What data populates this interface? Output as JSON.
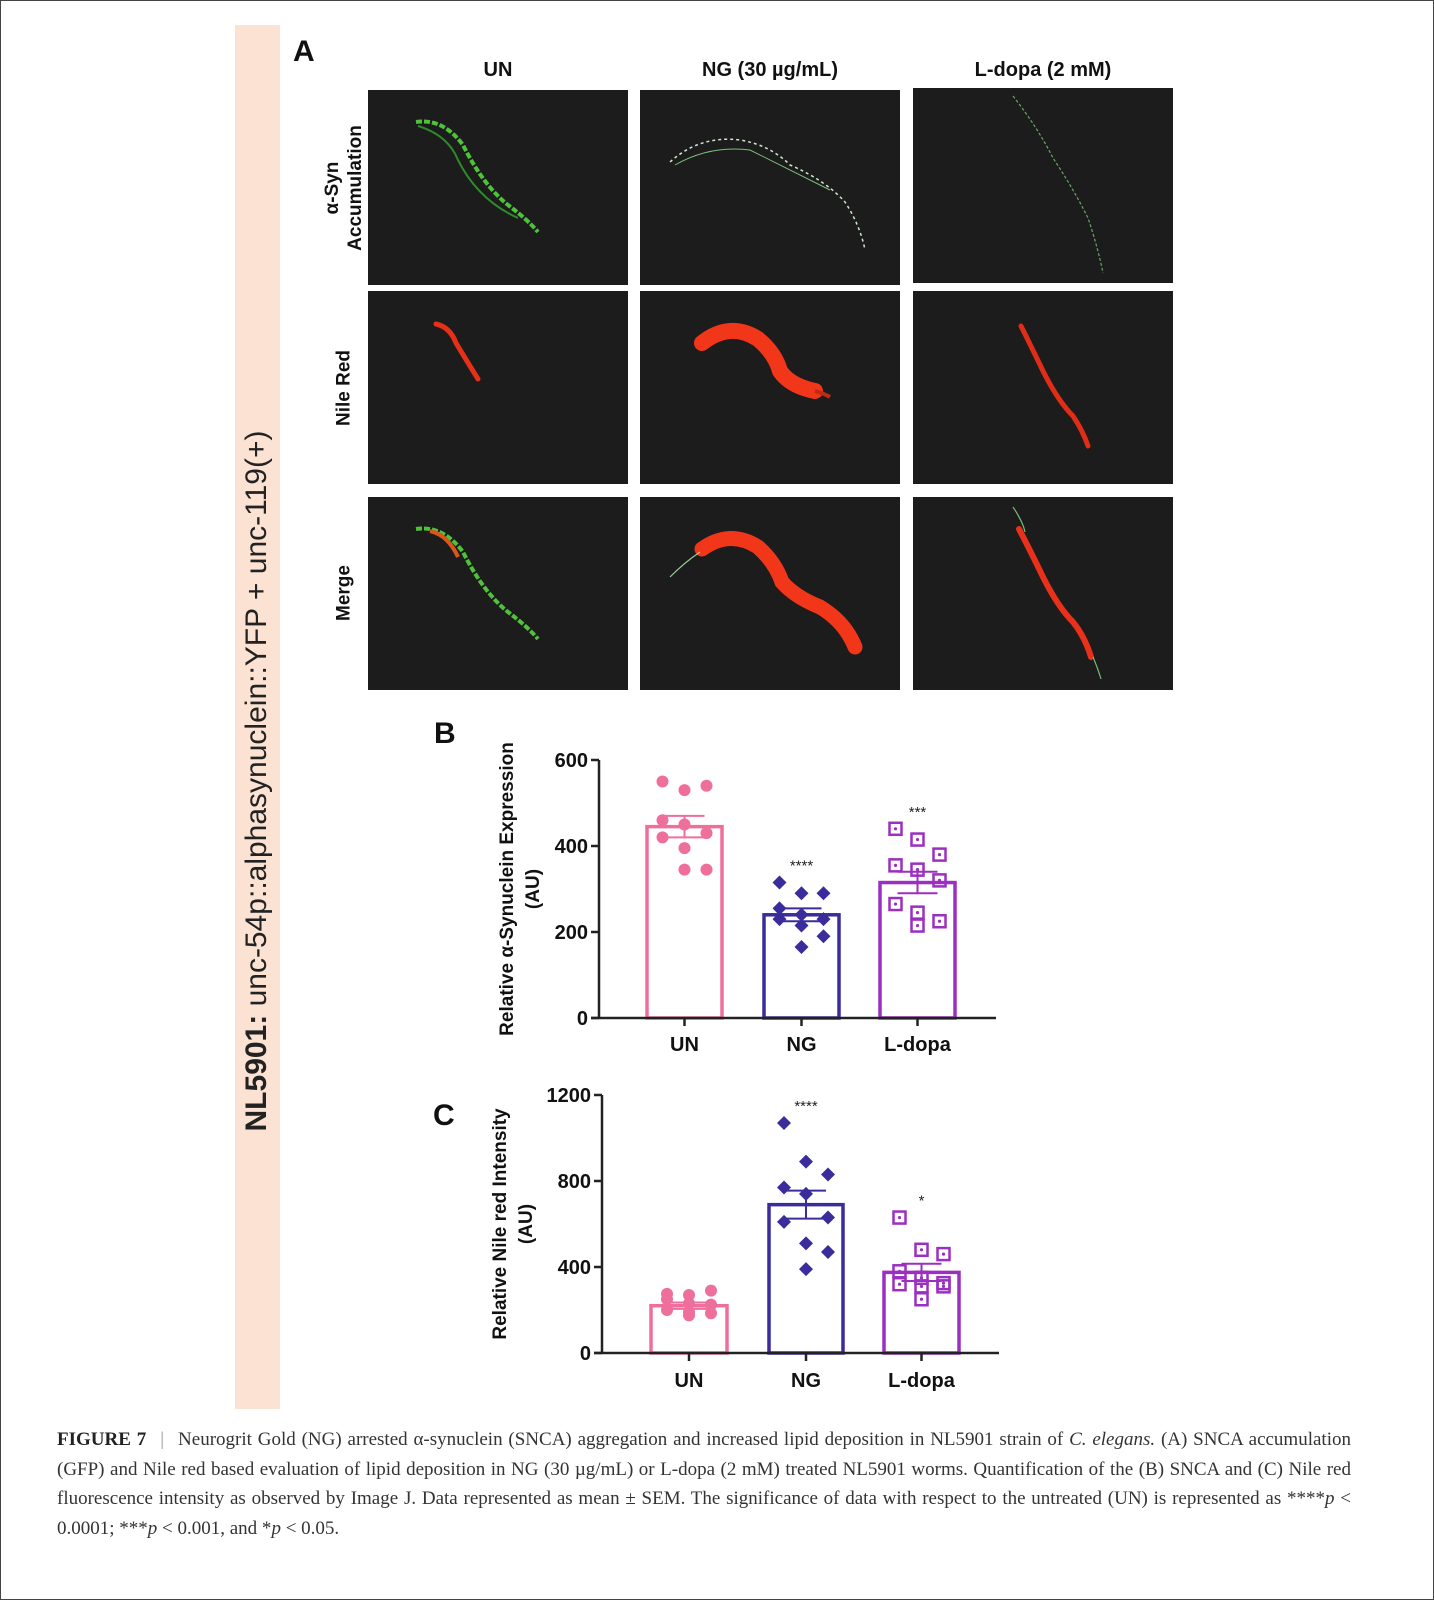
{
  "strain_label": {
    "bold": "NL5901:",
    "rest": " unc-54p::alphasynuclein::YFP + unc-119(+)"
  },
  "panel_a": {
    "letter": "A",
    "columns": [
      "UN",
      "NG (30 µg/mL)",
      "L-dopa (2 mM)"
    ],
    "rows": [
      {
        "line1": "α-Syn",
        "line2": "Accumulation"
      },
      {
        "line1": "Nile Red",
        "line2": ""
      },
      {
        "line1": "Merge",
        "line2": ""
      }
    ]
  },
  "chart_data": [
    {
      "panel_letter": "B",
      "type": "bar",
      "ylabel_line1": "Relative α-Synuclein Expression",
      "ylabel_line2": "(AU)",
      "xlabel": "",
      "categories": [
        "UN",
        "NG",
        "L-dopa"
      ],
      "ylim": [
        0,
        600
      ],
      "yticks": [
        "0",
        "200",
        "400",
        "600"
      ],
      "means": [
        445,
        240,
        315
      ],
      "sem": [
        25,
        15,
        25
      ],
      "significance": [
        "",
        "****",
        "***"
      ],
      "points": [
        [
          550,
          530,
          540,
          460,
          450,
          430,
          420,
          395,
          345,
          345
        ],
        [
          315,
          290,
          290,
          255,
          240,
          230,
          230,
          215,
          190,
          165
        ],
        [
          440,
          415,
          380,
          355,
          345,
          320,
          265,
          245,
          225,
          215
        ]
      ],
      "markers": [
        "circle",
        "diamond",
        "square-dot"
      ],
      "colors": [
        "#ef6f9c",
        "#3b2c9c",
        "#9a2fc0"
      ],
      "grid": false
    },
    {
      "panel_letter": "C",
      "type": "bar",
      "ylabel_line1": "Relative Nile red Intensity",
      "ylabel_line2": "(AU)",
      "xlabel": "",
      "categories": [
        "UN",
        "NG",
        "L-dopa"
      ],
      "ylim": [
        0,
        1200
      ],
      "yticks": [
        "0",
        "400",
        "800",
        "1200"
      ],
      "means": [
        220,
        690,
        375
      ],
      "sem": [
        15,
        65,
        40
      ],
      "significance": [
        "",
        "****",
        "*"
      ],
      "points": [
        [
          275,
          270,
          290,
          250,
          230,
          225,
          200,
          190,
          185,
          175
        ],
        [
          1070,
          890,
          830,
          770,
          740,
          630,
          610,
          510,
          470,
          390
        ],
        [
          630,
          480,
          460,
          380,
          350,
          325,
          320,
          310,
          310,
          250
        ]
      ],
      "markers": [
        "circle",
        "diamond",
        "square-dot"
      ],
      "colors": [
        "#ef6f9c",
        "#3b2c9c",
        "#9a2fc0"
      ],
      "grid": false
    }
  ],
  "caption": {
    "figure_label": "FIGURE 7",
    "separator": "|",
    "t1": "Neurogrit Gold (NG) arrested α-synuclein (SNCA) aggregation and increased lipid deposition in NL5901 strain of ",
    "i1": "C. elegans.",
    "t2": " (A) SNCA accumulation (GFP) and Nile red based evaluation of lipid deposition in NG (30 µg/mL) or L-dopa (2 mM) treated NL5901 worms. Quantification of the (B) SNCA and (C) Nile red fluorescence intensity as observed by Image J. Data represented as mean ± SEM. The significance of data with respect to the untreated (UN) is represented as ****",
    "p1": "p",
    "t3": " < 0.0001; ***",
    "p2": "p",
    "t4": " < 0.001, and *",
    "p3": "p",
    "t5": " < 0.05."
  }
}
